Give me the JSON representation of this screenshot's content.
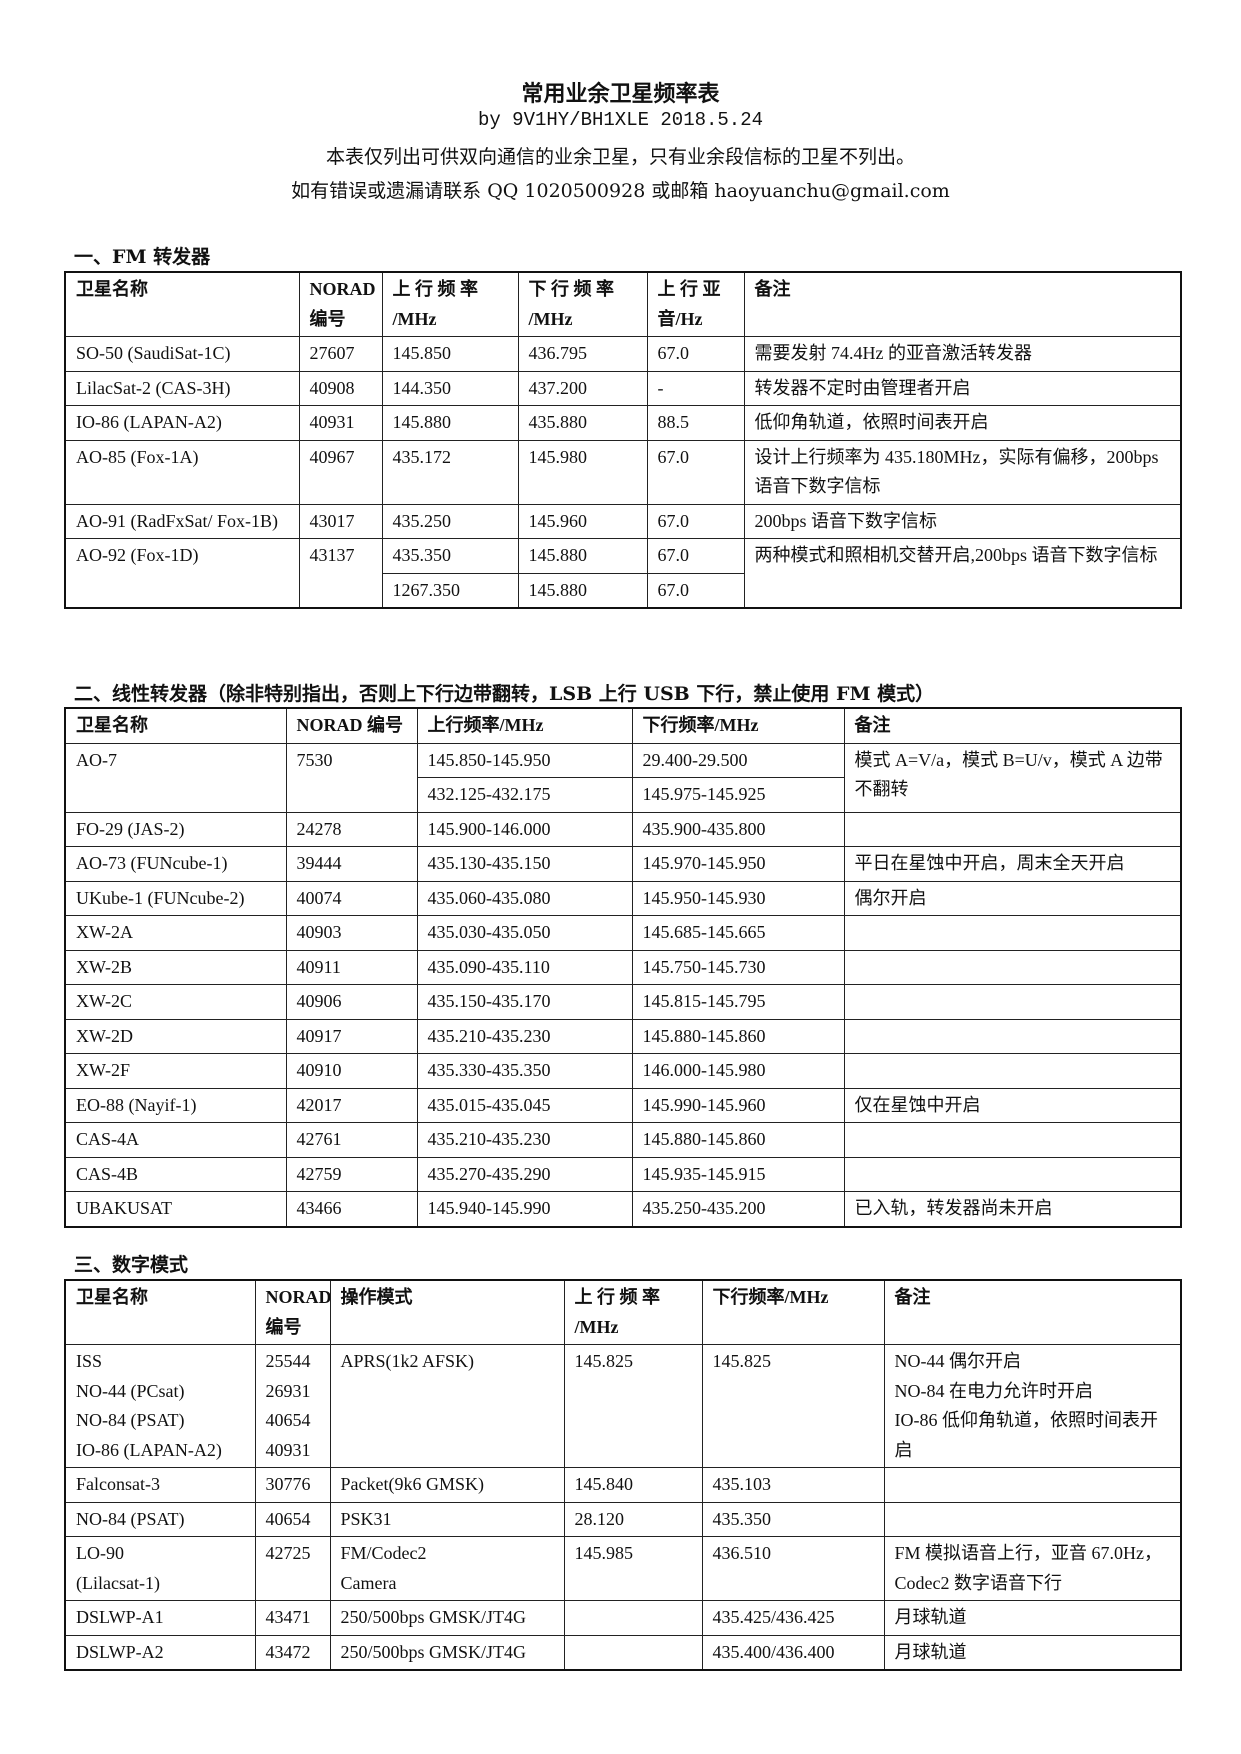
{
  "header": {
    "title": "常用业余卫星频率表",
    "byline": "by 9V1HY/BH1XLE 2018.5.24",
    "note": "本表仅列出可供双向通信的业余卫星，只有业余段信标的卫星不列出。",
    "contact": "如有错误或遗漏请联系 QQ 1020500928 或邮箱 haoyuanchu@gmail.com"
  },
  "fm": {
    "heading": "一、FM 转发器",
    "columns": [
      "卫星名称",
      "NORAD 编号",
      "上 行 频 率 /MHz",
      "下 行 频 率 /MHz",
      "上 行 亚 音/Hz",
      "备注"
    ],
    "rows": [
      {
        "name": "SO-50 (SaudiSat-1C)",
        "norad": "27607",
        "modes": [
          {
            "up": "145.850",
            "down": "436.795",
            "tone": "67.0"
          }
        ],
        "note": "需要发射 74.4Hz 的亚音激活转发器"
      },
      {
        "name": "LilacSat-2 (CAS-3H)",
        "norad": "40908",
        "modes": [
          {
            "up": "144.350",
            "down": "437.200",
            "tone": "-"
          }
        ],
        "note": "转发器不定时由管理者开启"
      },
      {
        "name": "IO-86 (LAPAN-A2)",
        "norad": "40931",
        "modes": [
          {
            "up": "145.880",
            "down": "435.880",
            "tone": "88.5"
          }
        ],
        "note": "低仰角轨道，依照时间表开启"
      },
      {
        "name": "AO-85 (Fox-1A)",
        "norad": "40967",
        "modes": [
          {
            "up": "435.172",
            "down": "145.980",
            "tone": "67.0"
          }
        ],
        "note": "设计上行频率为 435.180MHz，实际有偏移，200bps 语音下数字信标"
      },
      {
        "name": "AO-91 (RadFxSat/ Fox-1B)",
        "norad": "43017",
        "modes": [
          {
            "up": "435.250",
            "down": "145.960",
            "tone": "67.0"
          }
        ],
        "note": "200bps 语音下数字信标"
      },
      {
        "name": "AO-92 (Fox-1D)",
        "norad": "43137",
        "modes": [
          {
            "up": "435.350",
            "down": "145.880",
            "tone": "67.0"
          },
          {
            "up": "1267.350",
            "down": "145.880",
            "tone": "67.0"
          }
        ],
        "note": "两种模式和照相机交替开启,200bps 语音下数字信标"
      }
    ]
  },
  "linear": {
    "heading": "二、线性转发器（除非特别指出，否则上下行边带翻转，LSB 上行 USB 下行，禁止使用 FM 模式）",
    "columns": [
      "卫星名称",
      "NORAD 编号",
      "上行频率/MHz",
      "下行频率/MHz",
      "备注"
    ],
    "rows": [
      {
        "name": "AO-7",
        "norad": "7530",
        "modes": [
          {
            "up": "145.850-145.950",
            "down": "29.400-29.500"
          },
          {
            "up": "432.125-432.175",
            "down": "145.975-145.925"
          }
        ],
        "note": "模式 A=V/a，模式 B=U/v，模式 A 边带不翻转"
      },
      {
        "name": "FO-29 (JAS-2)",
        "norad": "24278",
        "modes": [
          {
            "up": "145.900-146.000",
            "down": "435.900-435.800"
          }
        ],
        "note": ""
      },
      {
        "name": "AO-73 (FUNcube-1)",
        "norad": "39444",
        "modes": [
          {
            "up": "435.130-435.150",
            "down": "145.970-145.950"
          }
        ],
        "note": "平日在星蚀中开启，周末全天开启"
      },
      {
        "name": "UKube-1 (FUNcube-2)",
        "norad": "40074",
        "modes": [
          {
            "up": "435.060-435.080",
            "down": "145.950-145.930"
          }
        ],
        "note": "偶尔开启"
      },
      {
        "name": "XW-2A",
        "norad": "40903",
        "modes": [
          {
            "up": "435.030-435.050",
            "down": "145.685-145.665"
          }
        ],
        "note": ""
      },
      {
        "name": "XW-2B",
        "norad": "40911",
        "modes": [
          {
            "up": "435.090-435.110",
            "down": "145.750-145.730"
          }
        ],
        "note": ""
      },
      {
        "name": "XW-2C",
        "norad": "40906",
        "modes": [
          {
            "up": "435.150-435.170",
            "down": "145.815-145.795"
          }
        ],
        "note": ""
      },
      {
        "name": "XW-2D",
        "norad": "40917",
        "modes": [
          {
            "up": "435.210-435.230",
            "down": "145.880-145.860"
          }
        ],
        "note": ""
      },
      {
        "name": "XW-2F",
        "norad": "40910",
        "modes": [
          {
            "up": "435.330-435.350",
            "down": "146.000-145.980"
          }
        ],
        "note": ""
      },
      {
        "name": "EO-88 (Nayif-1)",
        "norad": "42017",
        "modes": [
          {
            "up": "435.015-435.045",
            "down": "145.990-145.960"
          }
        ],
        "note": "仅在星蚀中开启"
      },
      {
        "name": "CAS-4A",
        "norad": "42761",
        "modes": [
          {
            "up": "435.210-435.230",
            "down": "145.880-145.860"
          }
        ],
        "note": ""
      },
      {
        "name": "CAS-4B",
        "norad": "42759",
        "modes": [
          {
            "up": "435.270-435.290",
            "down": "145.935-145.915"
          }
        ],
        "note": ""
      },
      {
        "name": "UBAKUSAT",
        "norad": "43466",
        "modes": [
          {
            "up": "145.940-145.990",
            "down": "435.250-435.200"
          }
        ],
        "note": "已入轨，转发器尚未开启"
      }
    ]
  },
  "digital": {
    "heading": "三、数字模式",
    "columns": [
      "卫星名称",
      "NORAD 编号",
      "操作模式",
      "上 行 频 率 /MHz",
      "下行频率/MHz",
      "备注"
    ],
    "rows": [
      {
        "name": [
          "ISS",
          "NO-44 (PCsat)",
          "NO-84 (PSAT)",
          "IO-86 (LAPAN-A2)"
        ],
        "norad": [
          "25544",
          "26931",
          "40654",
          "40931"
        ],
        "mode": [
          "APRS(1k2 AFSK)"
        ],
        "up": "145.825",
        "down": "145.825",
        "note": [
          "NO-44 偶尔开启",
          "NO-84 在电力允许时开启",
          "IO-86 低仰角轨道，依照时间表开启"
        ]
      },
      {
        "name": [
          "Falconsat-3"
        ],
        "norad": [
          "30776"
        ],
        "mode": [
          "Packet(9k6 GMSK)"
        ],
        "up": "145.840",
        "down": "435.103",
        "note": []
      },
      {
        "name": [
          "NO-84 (PSAT)"
        ],
        "norad": [
          "40654"
        ],
        "mode": [
          "PSK31"
        ],
        "up": "28.120",
        "down": "435.350",
        "note": []
      },
      {
        "name": [
          "LO-90",
          "(Lilacsat-1)"
        ],
        "norad": [
          "42725"
        ],
        "mode": [
          "FM/Codec2",
          "Camera"
        ],
        "up": "145.985",
        "down": "436.510",
        "note": [
          "FM 模拟语音上行，亚音 67.0Hz，Codec2 数字语音下行"
        ]
      },
      {
        "name": [
          "DSLWP-A1"
        ],
        "norad": [
          "43471"
        ],
        "mode": [
          "250/500bps GMSK/JT4G"
        ],
        "up": "",
        "down": "435.425/436.425",
        "note": [
          "月球轨道"
        ]
      },
      {
        "name": [
          "DSLWP-A2"
        ],
        "norad": [
          "43472"
        ],
        "mode": [
          "250/500bps GMSK/JT4G"
        ],
        "up": "",
        "down": "435.400/436.400",
        "note": [
          "月球轨道"
        ]
      }
    ]
  }
}
